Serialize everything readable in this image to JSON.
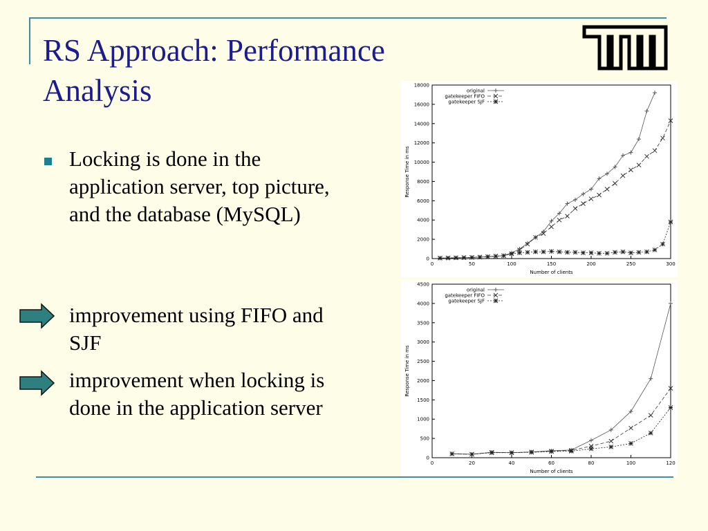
{
  "slide": {
    "title": "RS Approach: Performance Analysis",
    "bullet_main": "Locking is done in the application server, top picture, and the database (MySQL)",
    "arrow_item_1": "improvement using FIFO and SJF",
    "arrow_item_2": "improvement when locking is done in the application server"
  },
  "colors": {
    "title": "#1c1c8e",
    "accent": "#3d8fa0",
    "arrow": "#2e7f80",
    "bullet": "#1e7f8f"
  },
  "chart_data": [
    {
      "type": "line",
      "xlabel": "Number of clients",
      "ylabel": "Response Time in ms",
      "xlim": [
        0,
        300
      ],
      "ylim": [
        0,
        18000
      ],
      "xticks": [
        0,
        50,
        100,
        150,
        200,
        250,
        300
      ],
      "yticks": [
        0,
        2000,
        4000,
        6000,
        8000,
        10000,
        12000,
        14000,
        16000,
        18000
      ],
      "legend_position": "top-left",
      "series": [
        {
          "name": "original",
          "marker": "+",
          "dash": "",
          "x": [
            10,
            20,
            30,
            40,
            50,
            60,
            70,
            80,
            90,
            100,
            110,
            120,
            130,
            140,
            150,
            160,
            170,
            180,
            190,
            200,
            210,
            220,
            230,
            240,
            250,
            260,
            270,
            280
          ],
          "y": [
            50,
            60,
            80,
            100,
            120,
            150,
            200,
            250,
            300,
            600,
            1000,
            1600,
            2200,
            2800,
            3900,
            4700,
            5700,
            6100,
            6700,
            7200,
            8300,
            8800,
            9500,
            10700,
            11000,
            12400,
            15300,
            17200
          ]
        },
        {
          "name": "gatekeeper FIFO",
          "marker": "x",
          "dash": "5,3",
          "x": [
            10,
            20,
            30,
            40,
            50,
            60,
            70,
            80,
            90,
            100,
            110,
            120,
            130,
            140,
            150,
            160,
            170,
            180,
            190,
            200,
            210,
            220,
            230,
            240,
            250,
            260,
            270,
            280,
            290,
            300
          ],
          "y": [
            50,
            60,
            80,
            100,
            120,
            150,
            200,
            250,
            300,
            500,
            900,
            1500,
            2200,
            2600,
            3300,
            4000,
            4400,
            5200,
            5700,
            6200,
            6600,
            7200,
            7800,
            8600,
            9200,
            9700,
            10600,
            11200,
            12500,
            14300
          ]
        },
        {
          "name": "gatekeeper SJF",
          "marker": "*",
          "dash": "2,2",
          "x": [
            10,
            20,
            30,
            40,
            50,
            60,
            70,
            80,
            90,
            100,
            110,
            120,
            130,
            140,
            150,
            160,
            170,
            180,
            190,
            200,
            210,
            220,
            230,
            240,
            250,
            260,
            270,
            280,
            290,
            300
          ],
          "y": [
            50,
            60,
            80,
            100,
            120,
            150,
            200,
            250,
            300,
            500,
            600,
            650,
            700,
            700,
            750,
            700,
            650,
            650,
            600,
            600,
            550,
            550,
            650,
            700,
            600,
            650,
            700,
            900,
            1500,
            3800
          ]
        }
      ]
    },
    {
      "type": "line",
      "xlabel": "Number of clients",
      "ylabel": "Response Time in ms",
      "xlim": [
        0,
        120
      ],
      "ylim": [
        0,
        4500
      ],
      "xticks": [
        0,
        20,
        40,
        60,
        80,
        100,
        120
      ],
      "yticks": [
        0,
        500,
        1000,
        1500,
        2000,
        2500,
        3000,
        3500,
        4000,
        4500
      ],
      "legend_position": "top-left",
      "series": [
        {
          "name": "original",
          "marker": "+",
          "dash": "",
          "x": [
            10,
            20,
            30,
            40,
            50,
            60,
            70,
            80,
            90,
            100,
            110,
            120
          ],
          "y": [
            100,
            90,
            140,
            130,
            150,
            180,
            200,
            450,
            720,
            1200,
            2050,
            4000
          ]
        },
        {
          "name": "gatekeeper FIFO",
          "marker": "x",
          "dash": "5,3",
          "x": [
            10,
            20,
            30,
            40,
            50,
            60,
            70,
            80,
            90,
            100,
            110,
            120
          ],
          "y": [
            100,
            90,
            140,
            130,
            150,
            170,
            190,
            300,
            430,
            770,
            1100,
            1800
          ]
        },
        {
          "name": "gatekeeper SJF",
          "marker": "*",
          "dash": "2,2",
          "x": [
            10,
            20,
            30,
            40,
            50,
            60,
            70,
            80,
            90,
            100,
            110,
            120
          ],
          "y": [
            100,
            90,
            130,
            130,
            140,
            160,
            170,
            230,
            280,
            370,
            640,
            1300
          ]
        }
      ]
    }
  ]
}
